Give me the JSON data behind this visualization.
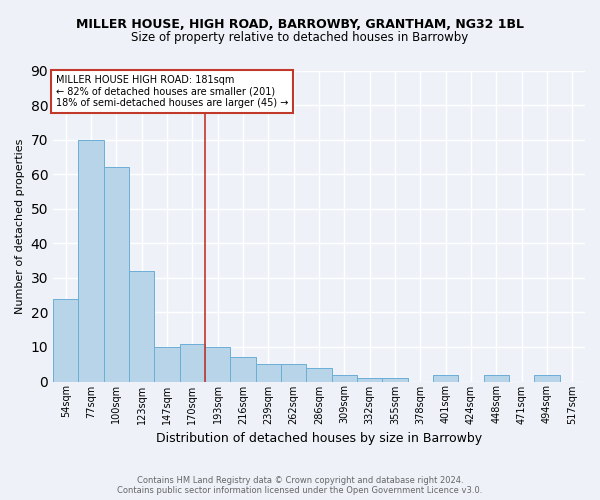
{
  "title": "MILLER HOUSE, HIGH ROAD, BARROWBY, GRANTHAM, NG32 1BL",
  "subtitle": "Size of property relative to detached houses in Barrowby",
  "xlabel": "Distribution of detached houses by size in Barrowby",
  "ylabel": "Number of detached properties",
  "footer_line1": "Contains HM Land Registry data © Crown copyright and database right 2024.",
  "footer_line2": "Contains public sector information licensed under the Open Government Licence v3.0.",
  "bar_labels": [
    "54sqm",
    "77sqm",
    "100sqm",
    "123sqm",
    "147sqm",
    "170sqm",
    "193sqm",
    "216sqm",
    "239sqm",
    "262sqm",
    "286sqm",
    "309sqm",
    "332sqm",
    "355sqm",
    "378sqm",
    "401sqm",
    "424sqm",
    "448sqm",
    "471sqm",
    "494sqm",
    "517sqm"
  ],
  "bar_values": [
    24,
    70,
    62,
    32,
    10,
    11,
    10,
    7,
    5,
    5,
    4,
    2,
    1,
    1,
    0,
    2,
    0,
    2,
    0,
    2,
    0
  ],
  "bar_color": "#b8d4e8",
  "bar_edge_color": "#6aaed6",
  "ylim": [
    0,
    90
  ],
  "yticks": [
    0,
    10,
    20,
    30,
    40,
    50,
    60,
    70,
    80,
    90
  ],
  "annotation_text_line1": "MILLER HOUSE HIGH ROAD: 181sqm",
  "annotation_text_line2": "← 82% of detached houses are smaller (201)",
  "annotation_text_line3": "18% of semi-detached houses are larger (45) →",
  "annotation_box_color": "white",
  "annotation_box_edge_color": "#c0392b",
  "vline_color": "#c0392b",
  "vline_x": 5.5,
  "background_color": "#eef2f8",
  "grid_color": "white",
  "title_fontsize": 9,
  "subtitle_fontsize": 8.5,
  "ylabel_fontsize": 8,
  "xlabel_fontsize": 9
}
